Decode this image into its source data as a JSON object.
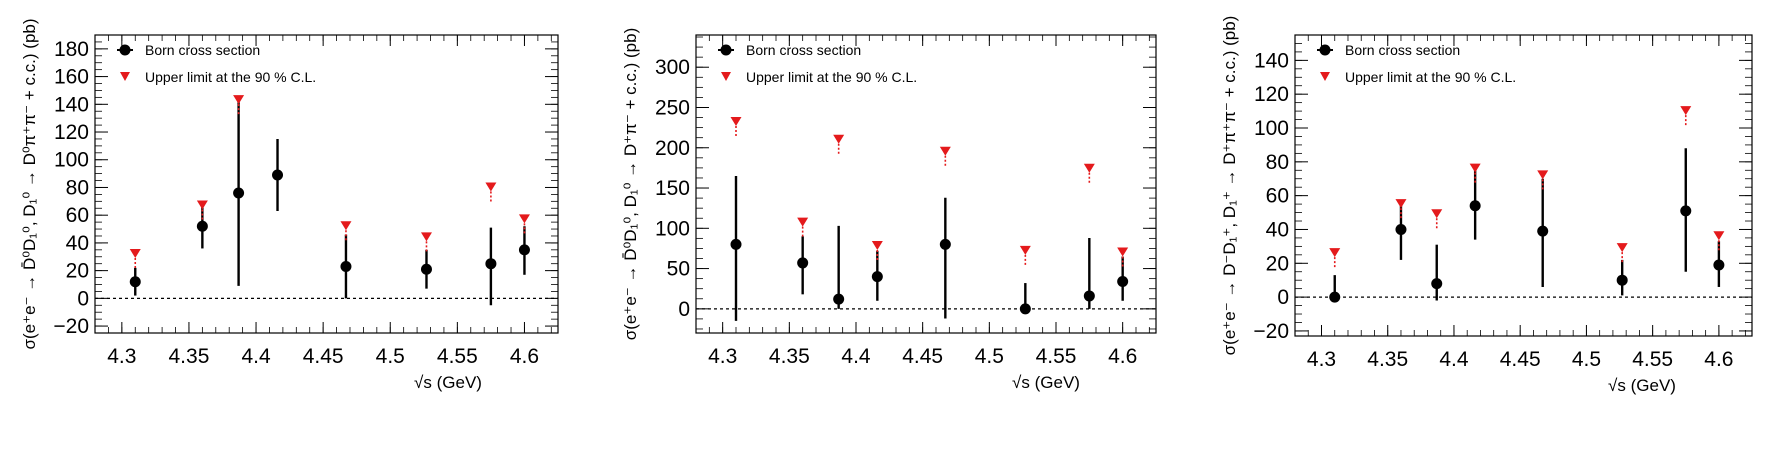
{
  "chart_data": [
    {
      "type": "scatter",
      "title": "",
      "xlabel": "√s (GeV)",
      "ylabel": "σ(e⁺e⁻ → D̄⁰D₁⁰, D₁⁰ → D⁰π⁺π⁻ + c.c.) (pb)",
      "xlim": [
        4.28,
        4.625
      ],
      "ylim": [
        -25,
        190
      ],
      "xticks": [
        4.3,
        4.35,
        4.4,
        4.45,
        4.5,
        4.55,
        4.6
      ],
      "xtick_labels": [
        "4.3",
        "4.35",
        "4.4",
        "4.45",
        "4.5",
        "4.55",
        "4.6"
      ],
      "yticks": [
        -20,
        0,
        20,
        40,
        60,
        80,
        100,
        120,
        140,
        160,
        180
      ],
      "ytick_labels": [
        "−20",
        "0",
        "20",
        "40",
        "60",
        "80",
        "100",
        "120",
        "140",
        "160",
        "180"
      ],
      "zero_line": true,
      "legend": [
        "Born cross section",
        "Upper limit at the 90 % C.L."
      ],
      "series": [
        {
          "name": "Born cross section",
          "color": "#000000",
          "marker": "circle",
          "points": [
            {
              "x": 4.31,
              "y": 12,
              "lo": 2,
              "hi": 22
            },
            {
              "x": 4.36,
              "y": 52,
              "lo": 36,
              "hi": 67
            },
            {
              "x": 4.387,
              "y": 76,
              "lo": 9,
              "hi": 143
            },
            {
              "x": 4.416,
              "y": 89,
              "lo": 63,
              "hi": 115
            },
            {
              "x": 4.467,
              "y": 23,
              "lo": 0,
              "hi": 46
            },
            {
              "x": 4.527,
              "y": 21,
              "lo": 7,
              "hi": 35
            },
            {
              "x": 4.575,
              "y": 25,
              "lo": -5,
              "hi": 51
            },
            {
              "x": 4.6,
              "y": 35,
              "lo": 17,
              "hi": 52
            }
          ]
        },
        {
          "name": "Upper limit at the 90 % C.L.",
          "color": "#e41a1c",
          "marker": "triangle-down",
          "points": [
            {
              "x": 4.31,
              "y": 32
            },
            {
              "x": 4.36,
              "y": 67
            },
            {
              "x": 4.387,
              "y": 143
            },
            {
              "x": 4.467,
              "y": 52
            },
            {
              "x": 4.527,
              "y": 44
            },
            {
              "x": 4.575,
              "y": 80
            },
            {
              "x": 4.6,
              "y": 57
            }
          ]
        }
      ]
    },
    {
      "type": "scatter",
      "title": "",
      "xlabel": "√s (GeV)",
      "ylabel": "σ(e⁺e⁻ → D̄⁰D₁⁰, D₁⁰ → D⁺π⁻ + c.c.) (pb)",
      "xlim": [
        4.28,
        4.625
      ],
      "ylim": [
        -30,
        340
      ],
      "xticks": [
        4.3,
        4.35,
        4.4,
        4.45,
        4.5,
        4.55,
        4.6
      ],
      "xtick_labels": [
        "4.3",
        "4.35",
        "4.4",
        "4.45",
        "4.5",
        "4.55",
        "4.6"
      ],
      "yticks": [
        0,
        50,
        100,
        150,
        200,
        250,
        300
      ],
      "ytick_labels": [
        "0",
        "50",
        "100",
        "150",
        "200",
        "250",
        "300"
      ],
      "zero_line": true,
      "legend": [
        "Born cross section",
        "Upper limit at the 90 % C.L."
      ],
      "series": [
        {
          "name": "Born cross section",
          "color": "#000000",
          "marker": "circle",
          "points": [
            {
              "x": 4.31,
              "y": 80,
              "lo": -15,
              "hi": 165
            },
            {
              "x": 4.36,
              "y": 57,
              "lo": 18,
              "hi": 90
            },
            {
              "x": 4.387,
              "y": 12,
              "lo": 0,
              "hi": 103
            },
            {
              "x": 4.416,
              "y": 40,
              "lo": 10,
              "hi": 72
            },
            {
              "x": 4.467,
              "y": 80,
              "lo": -12,
              "hi": 138
            },
            {
              "x": 4.527,
              "y": 0,
              "lo": -5,
              "hi": 32
            },
            {
              "x": 4.575,
              "y": 16,
              "lo": 0,
              "hi": 88
            },
            {
              "x": 4.6,
              "y": 34,
              "lo": 10,
              "hi": 65
            }
          ]
        },
        {
          "name": "Upper limit at the 90 % C.L.",
          "color": "#e41a1c",
          "marker": "triangle-down",
          "points": [
            {
              "x": 4.31,
              "y": 232
            },
            {
              "x": 4.36,
              "y": 107
            },
            {
              "x": 4.387,
              "y": 210
            },
            {
              "x": 4.416,
              "y": 78
            },
            {
              "x": 4.467,
              "y": 195
            },
            {
              "x": 4.527,
              "y": 72
            },
            {
              "x": 4.575,
              "y": 174
            },
            {
              "x": 4.6,
              "y": 70
            }
          ]
        }
      ]
    },
    {
      "type": "scatter",
      "title": "",
      "xlabel": "√s (GeV)",
      "ylabel": "σ(e⁺e⁻ → D⁻D₁⁺, D₁⁺ → D⁺π⁺π⁻ + c.c.) (pb)",
      "xlim": [
        4.28,
        4.625
      ],
      "ylim": [
        -23,
        155
      ],
      "xticks": [
        4.3,
        4.35,
        4.4,
        4.45,
        4.5,
        4.55,
        4.6
      ],
      "xtick_labels": [
        "4.3",
        "4.35",
        "4.4",
        "4.45",
        "4.5",
        "4.55",
        "4.6"
      ],
      "yticks": [
        -20,
        0,
        20,
        40,
        60,
        80,
        100,
        120,
        140
      ],
      "ytick_labels": [
        "−20",
        "0",
        "20",
        "40",
        "60",
        "80",
        "100",
        "120",
        "140"
      ],
      "zero_line": true,
      "legend": [
        "Born cross section",
        "Upper limit at the 90 % C.L."
      ],
      "series": [
        {
          "name": "Born cross section",
          "color": "#000000",
          "marker": "circle",
          "points": [
            {
              "x": 4.31,
              "y": 0,
              "lo": -2,
              "hi": 13
            },
            {
              "x": 4.36,
              "y": 40,
              "lo": 22,
              "hi": 55
            },
            {
              "x": 4.387,
              "y": 8,
              "lo": -2,
              "hi": 31
            },
            {
              "x": 4.416,
              "y": 54,
              "lo": 34,
              "hi": 75
            },
            {
              "x": 4.467,
              "y": 39,
              "lo": 6,
              "hi": 70
            },
            {
              "x": 4.527,
              "y": 10,
              "lo": 1,
              "hi": 22
            },
            {
              "x": 4.575,
              "y": 51,
              "lo": 15,
              "hi": 88
            },
            {
              "x": 4.6,
              "y": 19,
              "lo": 6,
              "hi": 33
            }
          ]
        },
        {
          "name": "Upper limit at the 90 % C.L.",
          "color": "#e41a1c",
          "marker": "triangle-down",
          "points": [
            {
              "x": 4.31,
              "y": 26
            },
            {
              "x": 4.36,
              "y": 55
            },
            {
              "x": 4.387,
              "y": 49
            },
            {
              "x": 4.416,
              "y": 76
            },
            {
              "x": 4.467,
              "y": 72
            },
            {
              "x": 4.527,
              "y": 29
            },
            {
              "x": 4.575,
              "y": 110
            },
            {
              "x": 4.6,
              "y": 36
            }
          ]
        }
      ]
    }
  ]
}
